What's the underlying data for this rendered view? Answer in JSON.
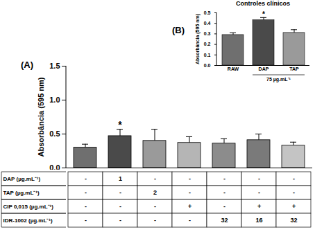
{
  "chart_data": [
    {
      "type": "bar",
      "panel_label": "(A)",
      "y_label": "Absorbância (595 nm)",
      "categories": [
        null,
        null,
        null,
        null,
        null,
        null,
        null
      ],
      "values": [
        0.3,
        0.47,
        0.4,
        0.37,
        0.36,
        0.41,
        0.33
      ],
      "errors": [
        0.05,
        0.1,
        0.17,
        0.09,
        0.07,
        0.09,
        0.05
      ],
      "value_annotations": [
        null,
        "*",
        null,
        null,
        null,
        null,
        null
      ],
      "colors": [
        "#6f6f6f",
        "#4a4a4a",
        "#9a9a9a",
        "#b5b5b5",
        "#8c8c8c",
        "#7a7a7a",
        "#c4c4c4"
      ],
      "ylim": [
        0,
        1.5
      ],
      "yticks": [
        {
          "value": 0,
          "label": "0.0"
        },
        {
          "value": 0.5,
          "label": "0.5"
        },
        {
          "value": 1,
          "label": "1.0"
        },
        {
          "value": 1.5,
          "label": "1.5"
        }
      ],
      "table": {
        "rows": [
          {
            "label": "DAP (µg.mL⁻¹)",
            "cells": [
              "-",
              "1",
              "-",
              "-",
              "-",
              "-",
              "-"
            ]
          },
          {
            "label": "TAP (µg.mL⁻¹)",
            "cells": [
              "-",
              "-",
              "2",
              "-",
              "-",
              "-",
              "-"
            ]
          },
          {
            "label": "CIP 0,015 (µg.mL⁻¹)",
            "cells": [
              "-",
              "-",
              "-",
              "+",
              "-",
              "+",
              "+"
            ]
          },
          {
            "label": "IDR-1002 (µg.mL⁻¹)",
            "cells": [
              "-",
              "-",
              "-",
              "-",
              "32",
              "16",
              "32"
            ]
          }
        ]
      }
    },
    {
      "type": "bar",
      "panel_label": "(B)",
      "title": "Controles clínicos",
      "y_label": "Absorbância (595 nm)",
      "categories": [
        "RAW",
        "DAP",
        "TAP"
      ],
      "values": [
        0.29,
        0.43,
        0.31
      ],
      "errors": [
        0.02,
        0.025,
        0.03
      ],
      "value_annotations": [
        null,
        "*",
        null
      ],
      "colors": [
        "#6f6f6f",
        "#4a4a4a",
        "#9a9a9a"
      ],
      "ylim": [
        0,
        0.5
      ],
      "yticks": [
        {
          "value": 0,
          "label": "0.0"
        },
        {
          "value": 0.1,
          "label": "0.1"
        },
        {
          "value": 0.2,
          "label": "0.2"
        },
        {
          "value": 0.3,
          "label": "0.3"
        },
        {
          "value": 0.4,
          "label": "0.4"
        },
        {
          "value": 0.5,
          "label": "0.5"
        }
      ],
      "group_label": {
        "text": "75 µg.mL⁻¹",
        "categories": [
          "DAP",
          "TAP"
        ]
      }
    }
  ]
}
